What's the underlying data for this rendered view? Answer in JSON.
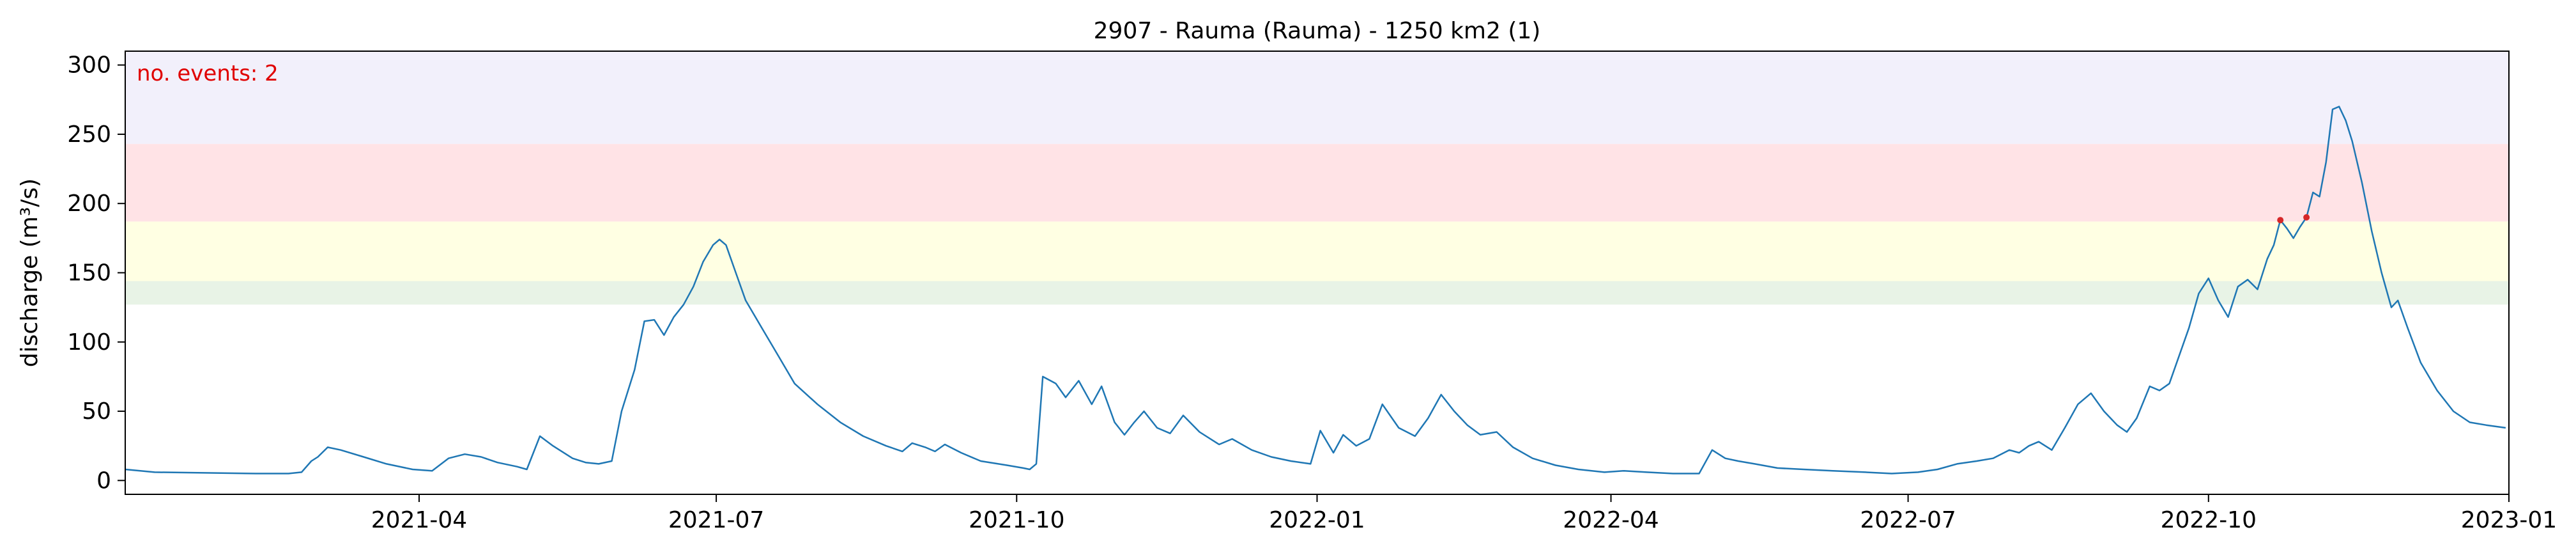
{
  "chart_data": {
    "type": "line",
    "title": "2907 - Rauma (Rauma) - 1250 km2 (1)",
    "xlabel": "",
    "ylabel": "discharge (m³/s)",
    "xlim": [
      "2021-01-01",
      "2023-01-01"
    ],
    "ylim": [
      -10,
      310
    ],
    "x_ticks": [
      "2021-04-01",
      "2021-07-01",
      "2021-10-01",
      "2022-01-01",
      "2022-04-01",
      "2022-07-01",
      "2022-10-01",
      "2023-01-01"
    ],
    "x_tick_labels": [
      "2021-04",
      "2021-07",
      "2021-10",
      "2022-01",
      "2022-04",
      "2022-07",
      "2022-10",
      "2023-01"
    ],
    "y_ticks": [
      0,
      50,
      100,
      150,
      200,
      250,
      300
    ],
    "y_tick_labels": [
      "0",
      "50",
      "100",
      "150",
      "200",
      "250",
      "300"
    ],
    "annotation": "no. events: 2",
    "threshold_bands": [
      {
        "from": 127,
        "to": 144,
        "color": "#e8f3e6"
      },
      {
        "from": 144,
        "to": 187,
        "color": "#ffffe3"
      },
      {
        "from": 187,
        "to": 243,
        "color": "#ffe3e6"
      },
      {
        "from": 243,
        "to": 310,
        "color": "#f2f0fb"
      }
    ],
    "series": [
      {
        "color": "#1f77b4",
        "points": [
          [
            "2021-01-01",
            8
          ],
          [
            "2021-01-10",
            6
          ],
          [
            "2021-01-25",
            5.5
          ],
          [
            "2021-02-10",
            5
          ],
          [
            "2021-02-20",
            5
          ],
          [
            "2021-02-24",
            6
          ],
          [
            "2021-02-27",
            14
          ],
          [
            "2021-03-01",
            17
          ],
          [
            "2021-03-04",
            24
          ],
          [
            "2021-03-08",
            22
          ],
          [
            "2021-03-15",
            17
          ],
          [
            "2021-03-22",
            12
          ],
          [
            "2021-03-30",
            8
          ],
          [
            "2021-04-05",
            7
          ],
          [
            "2021-04-10",
            16
          ],
          [
            "2021-04-15",
            19
          ],
          [
            "2021-04-20",
            17
          ],
          [
            "2021-04-25",
            13
          ],
          [
            "2021-05-01",
            10
          ],
          [
            "2021-05-04",
            8
          ],
          [
            "2021-05-08",
            32
          ],
          [
            "2021-05-12",
            25
          ],
          [
            "2021-05-18",
            16
          ],
          [
            "2021-05-22",
            13
          ],
          [
            "2021-05-26",
            12
          ],
          [
            "2021-05-30",
            14
          ],
          [
            "2021-06-02",
            50
          ],
          [
            "2021-06-06",
            80
          ],
          [
            "2021-06-09",
            115
          ],
          [
            "2021-06-12",
            116
          ],
          [
            "2021-06-15",
            105
          ],
          [
            "2021-06-18",
            118
          ],
          [
            "2021-06-21",
            127
          ],
          [
            "2021-06-24",
            140
          ],
          [
            "2021-06-27",
            158
          ],
          [
            "2021-06-30",
            170
          ],
          [
            "2021-07-02",
            174
          ],
          [
            "2021-07-04",
            170
          ],
          [
            "2021-07-07",
            150
          ],
          [
            "2021-07-10",
            130
          ],
          [
            "2021-07-15",
            110
          ],
          [
            "2021-07-20",
            90
          ],
          [
            "2021-07-25",
            70
          ],
          [
            "2021-08-01",
            55
          ],
          [
            "2021-08-08",
            42
          ],
          [
            "2021-08-15",
            32
          ],
          [
            "2021-08-22",
            25
          ],
          [
            "2021-08-27",
            21
          ],
          [
            "2021-08-30",
            27
          ],
          [
            "2021-09-03",
            24
          ],
          [
            "2021-09-06",
            21
          ],
          [
            "2021-09-09",
            26
          ],
          [
            "2021-09-14",
            20
          ],
          [
            "2021-09-20",
            14
          ],
          [
            "2021-09-28",
            11
          ],
          [
            "2021-10-03",
            9
          ],
          [
            "2021-10-05",
            8
          ],
          [
            "2021-10-07",
            12
          ],
          [
            "2021-10-09",
            75
          ],
          [
            "2021-10-13",
            70
          ],
          [
            "2021-10-16",
            60
          ],
          [
            "2021-10-20",
            72
          ],
          [
            "2021-10-24",
            55
          ],
          [
            "2021-10-27",
            68
          ],
          [
            "2021-10-31",
            42
          ],
          [
            "2021-11-03",
            33
          ],
          [
            "2021-11-06",
            42
          ],
          [
            "2021-11-09",
            50
          ],
          [
            "2021-11-13",
            38
          ],
          [
            "2021-11-17",
            34
          ],
          [
            "2021-11-21",
            47
          ],
          [
            "2021-11-26",
            35
          ],
          [
            "2021-12-02",
            26
          ],
          [
            "2021-12-06",
            30
          ],
          [
            "2021-12-12",
            22
          ],
          [
            "2021-12-18",
            17
          ],
          [
            "2021-12-24",
            14
          ],
          [
            "2021-12-30",
            12
          ],
          [
            "2022-01-02",
            36
          ],
          [
            "2022-01-06",
            20
          ],
          [
            "2022-01-09",
            33
          ],
          [
            "2022-01-13",
            25
          ],
          [
            "2022-01-17",
            30
          ],
          [
            "2022-01-21",
            55
          ],
          [
            "2022-01-26",
            38
          ],
          [
            "2022-01-31",
            32
          ],
          [
            "2022-02-04",
            45
          ],
          [
            "2022-02-08",
            62
          ],
          [
            "2022-02-12",
            50
          ],
          [
            "2022-02-16",
            40
          ],
          [
            "2022-02-20",
            33
          ],
          [
            "2022-02-25",
            35
          ],
          [
            "2022-03-02",
            24
          ],
          [
            "2022-03-08",
            16
          ],
          [
            "2022-03-15",
            11
          ],
          [
            "2022-03-22",
            8
          ],
          [
            "2022-03-30",
            6
          ],
          [
            "2022-04-05",
            7
          ],
          [
            "2022-04-12",
            6
          ],
          [
            "2022-04-20",
            5
          ],
          [
            "2022-04-28",
            5
          ],
          [
            "2022-05-02",
            22
          ],
          [
            "2022-05-06",
            16
          ],
          [
            "2022-05-10",
            14
          ],
          [
            "2022-05-15",
            12
          ],
          [
            "2022-05-22",
            9
          ],
          [
            "2022-05-30",
            8
          ],
          [
            "2022-06-08",
            7
          ],
          [
            "2022-06-18",
            6
          ],
          [
            "2022-06-26",
            5
          ],
          [
            "2022-07-04",
            6
          ],
          [
            "2022-07-10",
            8
          ],
          [
            "2022-07-16",
            12
          ],
          [
            "2022-07-22",
            14
          ],
          [
            "2022-07-27",
            16
          ],
          [
            "2022-08-01",
            22
          ],
          [
            "2022-08-04",
            20
          ],
          [
            "2022-08-07",
            25
          ],
          [
            "2022-08-10",
            28
          ],
          [
            "2022-08-14",
            22
          ],
          [
            "2022-08-18",
            38
          ],
          [
            "2022-08-22",
            55
          ],
          [
            "2022-08-26",
            63
          ],
          [
            "2022-08-30",
            50
          ],
          [
            "2022-09-03",
            40
          ],
          [
            "2022-09-06",
            35
          ],
          [
            "2022-09-09",
            45
          ],
          [
            "2022-09-13",
            68
          ],
          [
            "2022-09-16",
            65
          ],
          [
            "2022-09-19",
            70
          ],
          [
            "2022-09-22",
            90
          ],
          [
            "2022-09-25",
            110
          ],
          [
            "2022-09-28",
            135
          ],
          [
            "2022-10-01",
            146
          ],
          [
            "2022-10-04",
            130
          ],
          [
            "2022-10-07",
            118
          ],
          [
            "2022-10-10",
            140
          ],
          [
            "2022-10-13",
            145
          ],
          [
            "2022-10-16",
            138
          ],
          [
            "2022-10-19",
            160
          ],
          [
            "2022-10-21",
            170
          ],
          [
            "2022-10-23",
            188
          ],
          [
            "2022-10-25",
            182
          ],
          [
            "2022-10-27",
            175
          ],
          [
            "2022-10-29",
            183
          ],
          [
            "2022-10-31",
            190
          ],
          [
            "2022-11-02",
            208
          ],
          [
            "2022-11-04",
            205
          ],
          [
            "2022-11-06",
            230
          ],
          [
            "2022-11-08",
            268
          ],
          [
            "2022-11-10",
            270
          ],
          [
            "2022-11-12",
            260
          ],
          [
            "2022-11-14",
            245
          ],
          [
            "2022-11-17",
            215
          ],
          [
            "2022-11-20",
            180
          ],
          [
            "2022-11-23",
            150
          ],
          [
            "2022-11-26",
            125
          ],
          [
            "2022-11-28",
            130
          ],
          [
            "2022-12-01",
            110
          ],
          [
            "2022-12-05",
            85
          ],
          [
            "2022-12-10",
            65
          ],
          [
            "2022-12-15",
            50
          ],
          [
            "2022-12-20",
            42
          ],
          [
            "2022-12-25",
            40
          ],
          [
            "2022-12-31",
            38
          ]
        ]
      }
    ],
    "event_markers": [
      {
        "x": "2022-10-23",
        "y": 188,
        "color": "#d62728"
      },
      {
        "x": "2022-10-31",
        "y": 190,
        "color": "#d62728"
      }
    ]
  }
}
